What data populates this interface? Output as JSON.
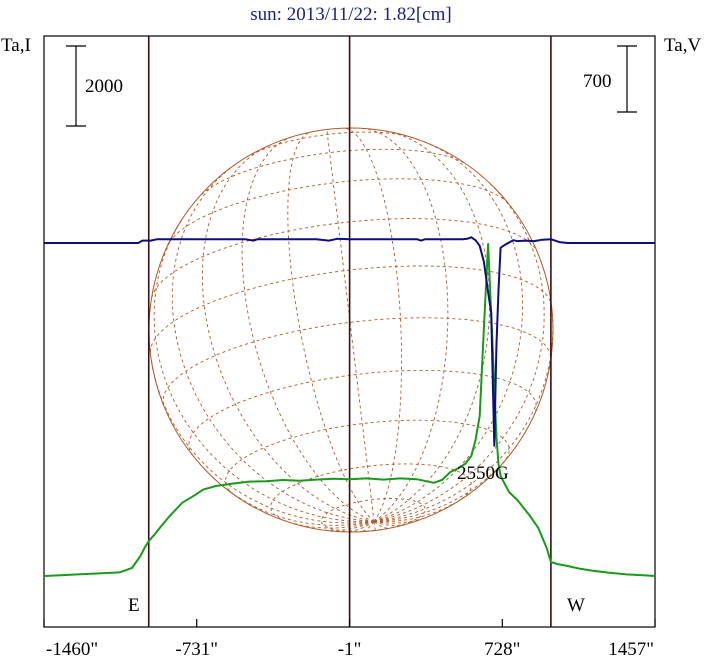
{
  "title": "sun: 2013/11/22: 1.82[cm]",
  "left_axis_label": "Ta,I",
  "right_axis_label": "Ta,V",
  "left_scale_label": "2000",
  "right_scale_label": "700",
  "field_label": "2550G",
  "east_label": "E",
  "west_label": "W",
  "colors": {
    "intensity": "#1a9a1a",
    "polarization": "#0d0d80",
    "disk": "#b05a2a",
    "vertical_lines": "#3a1010",
    "title": "#1a237e"
  },
  "chart_data": {
    "type": "line",
    "title": "sun: 2013/11/22: 1.82[cm]",
    "xlabel": "",
    "xlim": [
      -1460,
      1457
    ],
    "xticks": [
      -1460,
      -731,
      -1,
      728,
      1457
    ],
    "xtick_labels": [
      "-1460\"",
      "-731\"",
      "-1\"",
      "728\"",
      "1457\""
    ],
    "reference_lines_x": [
      -960,
      -1,
      960
    ],
    "scale_bars": {
      "left_intensity": 2000,
      "right_polarization": 700
    },
    "annotation": "2550G",
    "series": [
      {
        "name": "Ta,I",
        "color": "#1a9a1a",
        "x": [
          -1460,
          -1380,
          -1300,
          -1220,
          -1100,
          -1040,
          -1000,
          -980,
          -960,
          -930,
          -900,
          -860,
          -800,
          -740,
          -700,
          -640,
          -560,
          -480,
          -400,
          -320,
          -240,
          -160,
          -80,
          -1,
          80,
          160,
          240,
          320,
          400,
          440,
          480,
          520,
          550,
          580,
          600,
          620,
          640,
          660,
          680,
          700,
          710,
          720,
          740,
          760,
          800,
          860,
          900,
          940,
          960,
          990,
          1040,
          1100,
          1160,
          1240,
          1320,
          1400,
          1457
        ],
        "y": [
          0,
          20,
          40,
          60,
          90,
          200,
          500,
          700,
          870,
          1050,
          1250,
          1500,
          1830,
          2020,
          2160,
          2250,
          2310,
          2360,
          2370,
          2400,
          2380,
          2410,
          2430,
          2420,
          2440,
          2410,
          2440,
          2420,
          2330,
          2400,
          2600,
          2700,
          2800,
          3000,
          3400,
          4000,
          6200,
          8300,
          6000,
          3500,
          2800,
          2500,
          2300,
          2100,
          1900,
          1500,
          1200,
          700,
          350,
          300,
          250,
          180,
          130,
          80,
          40,
          20,
          0
        ]
      },
      {
        "name": "Ta,V",
        "color": "#0d0d80",
        "x": [
          -1460,
          -1200,
          -1010,
          -990,
          -970,
          -950,
          -930,
          -920,
          -900,
          -800,
          -600,
          -500,
          -460,
          -440,
          -400,
          -300,
          -160,
          -100,
          -60,
          -1,
          100,
          200,
          320,
          340,
          360,
          420,
          500,
          540,
          560,
          580,
          600,
          620,
          640,
          660,
          675,
          690,
          700,
          710,
          720,
          740,
          780,
          800,
          840,
          880,
          920,
          960,
          1000,
          1040,
          1200,
          1457
        ],
        "y": [
          0,
          0,
          0,
          25,
          25,
          25,
          35,
          40,
          40,
          40,
          40,
          40,
          25,
          40,
          40,
          40,
          40,
          25,
          45,
          40,
          40,
          40,
          40,
          25,
          40,
          40,
          40,
          40,
          45,
          60,
          30,
          -30,
          -200,
          -520,
          -740,
          -2150,
          -1100,
          -500,
          -50,
          -20,
          30,
          20,
          25,
          20,
          35,
          40,
          10,
          0,
          0,
          0
        ]
      }
    ]
  }
}
